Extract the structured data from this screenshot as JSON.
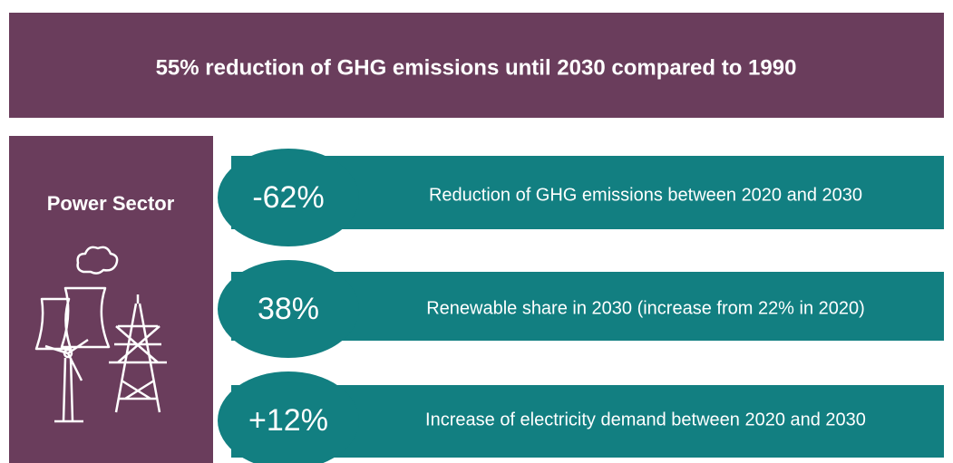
{
  "banner": {
    "text": "55% reduction of GHG emissions until 2030 compared to 1990"
  },
  "sector": {
    "label": "Power Sector"
  },
  "rows": [
    {
      "value": "-62%",
      "description": "Reduction of GHG emissions between 2020 and 2030"
    },
    {
      "value": "38%",
      "description": "Renewable share in 2030 (increase from 22% in 2020)"
    },
    {
      "value": "+12%",
      "description": "Increase of electricity demand between 2020 and 2030"
    }
  ]
}
